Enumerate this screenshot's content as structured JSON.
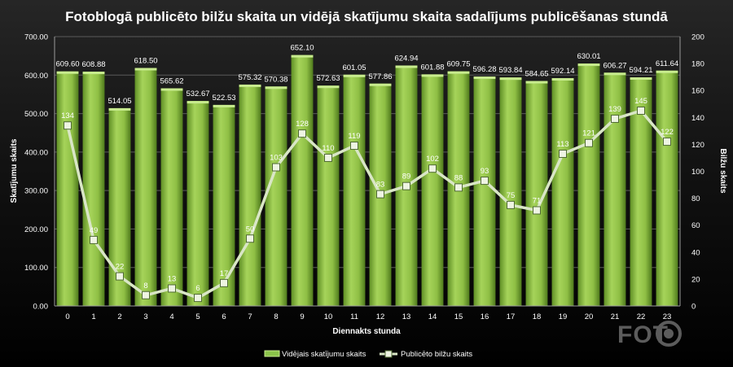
{
  "chart_data": {
    "type": "bar",
    "title": "Fotoblogā publicēto bilžu skaita un vidējā skatījumu skaita sadalījums publicēšanas stundā",
    "xlabel": "Diennakts stunda",
    "ylabel": "Skatījumu skaits",
    "y2label": "Bilžu skaits",
    "categories": [
      "0",
      "1",
      "2",
      "3",
      "4",
      "5",
      "6",
      "7",
      "8",
      "9",
      "10",
      "11",
      "12",
      "13",
      "14",
      "15",
      "16",
      "17",
      "18",
      "19",
      "20",
      "21",
      "22",
      "23"
    ],
    "ylim": [
      0,
      700
    ],
    "y2lim": [
      0,
      200
    ],
    "yticks": [
      "0.00",
      "100.00",
      "200.00",
      "300.00",
      "400.00",
      "500.00",
      "600.00",
      "700.00"
    ],
    "y2ticks": [
      "0",
      "20",
      "40",
      "60",
      "80",
      "100",
      "120",
      "140",
      "160",
      "180",
      "200"
    ],
    "grid": true,
    "legend_position": "bottom",
    "series": [
      {
        "name": "Vidējais skatījumu skaits",
        "type": "bar",
        "axis": "left",
        "color": "#8bc34a",
        "values": [
          609.6,
          608.88,
          514.05,
          618.5,
          565.62,
          532.67,
          522.53,
          575.32,
          570.38,
          652.1,
          572.63,
          601.05,
          577.86,
          624.94,
          601.88,
          609.75,
          596.28,
          593.84,
          584.65,
          592.14,
          630.01,
          606.27,
          594.21,
          611.64
        ],
        "labels": [
          "609.60",
          "608.88",
          "514.05",
          "618.50",
          "565.62",
          "532.67",
          "522.53",
          "575.32",
          "570.38",
          "652.10",
          "572.63",
          "601.05",
          "577.86",
          "624.94",
          "601.88",
          "609.75",
          "596.28",
          "593.84",
          "584.65",
          "592.14",
          "630.01",
          "606.27",
          "594.21",
          "611.64"
        ]
      },
      {
        "name": "Publicēto bilžu skaits",
        "type": "line",
        "axis": "right",
        "color": "#d9e6c6",
        "values": [
          134,
          49,
          22,
          8,
          13,
          6,
          17,
          50,
          103,
          128,
          110,
          119,
          83,
          89,
          102,
          88,
          93,
          75,
          71,
          113,
          121,
          139,
          145,
          122
        ]
      }
    ]
  },
  "watermark": "FOTO"
}
